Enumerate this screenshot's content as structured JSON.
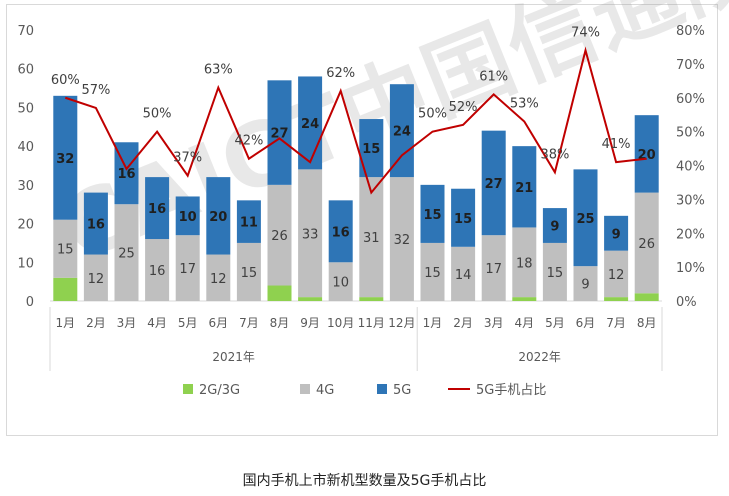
{
  "caption": "国内手机上市新机型数量及5G手机占比",
  "watermark": "CAICT中国信通院",
  "chart_data": {
    "type": "bar",
    "stacked": true,
    "categories": [
      "1月",
      "2月",
      "3月",
      "4月",
      "5月",
      "6月",
      "7月",
      "8月",
      "9月",
      "10月",
      "11月",
      "12月",
      "1月",
      "2月",
      "3月",
      "4月",
      "5月",
      "6月",
      "7月",
      "8月"
    ],
    "year_groups": [
      {
        "label": "2021年",
        "start": 0,
        "end": 11
      },
      {
        "label": "2022年",
        "start": 12,
        "end": 19
      }
    ],
    "series": [
      {
        "name": "2G/3G",
        "color": "#8fd14f",
        "kind": "bar",
        "values": [
          6,
          0,
          0,
          0,
          0,
          0,
          0,
          4,
          1,
          0,
          1,
          0,
          0,
          0,
          0,
          1,
          0,
          0,
          1,
          2
        ]
      },
      {
        "name": "4G",
        "color": "#bfbfbf",
        "kind": "bar",
        "values": [
          15,
          12,
          25,
          16,
          17,
          12,
          15,
          26,
          33,
          10,
          31,
          32,
          15,
          14,
          17,
          18,
          15,
          9,
          12,
          26
        ],
        "labels": [
          "15",
          "12",
          "25",
          "16",
          "17",
          "12",
          "15",
          "26",
          "33",
          "10",
          "31",
          "32",
          "15",
          "14",
          "17",
          "18",
          "15",
          "9",
          "12",
          "26"
        ]
      },
      {
        "name": "5G",
        "color": "#2e75b6",
        "kind": "bar",
        "values": [
          32,
          16,
          16,
          16,
          10,
          20,
          11,
          27,
          24,
          16,
          15,
          24,
          15,
          15,
          27,
          21,
          9,
          25,
          9,
          20
        ],
        "labels": [
          "32",
          "16",
          "16",
          "16",
          "10",
          "20",
          "11",
          "27",
          "24",
          "16",
          "15",
          "24",
          "15",
          "15",
          "27",
          "21",
          "9",
          "25",
          "9",
          "20"
        ]
      },
      {
        "name": "5G手机占比",
        "color": "#c00000",
        "kind": "line",
        "axis": "right",
        "values": [
          60,
          57,
          39,
          50,
          37,
          63,
          42,
          48,
          41,
          62,
          32,
          43,
          50,
          52,
          61,
          53,
          38,
          74,
          41,
          42
        ],
        "labels": [
          "60%",
          "57%",
          "",
          "50%",
          "37%",
          "63%",
          "42%",
          "",
          "",
          "62%",
          "",
          "",
          "50%",
          "52%",
          "61%",
          "53%",
          "38%",
          "74%",
          "41%",
          ""
        ]
      }
    ],
    "y_left": {
      "min": 0,
      "max": 70,
      "ticks": [
        "0",
        "10",
        "20",
        "30",
        "40",
        "50",
        "60",
        "70"
      ]
    },
    "y_right": {
      "min": 0,
      "max": 80,
      "ticks": [
        "0%",
        "10%",
        "20%",
        "30%",
        "40%",
        "50%",
        "60%",
        "70%",
        "80%"
      ]
    },
    "legend_position": "bottom",
    "grid": false
  }
}
